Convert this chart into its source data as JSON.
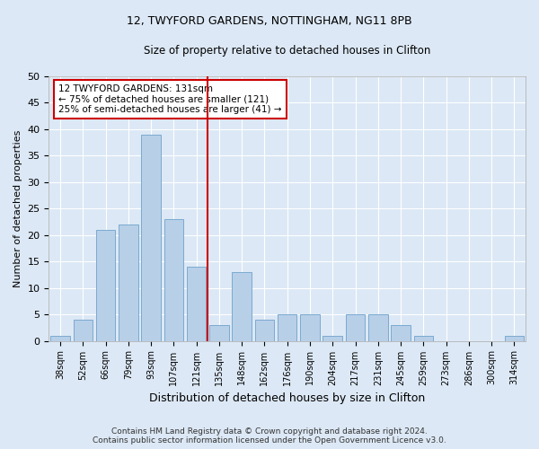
{
  "title_line1": "12, TWYFORD GARDENS, NOTTINGHAM, NG11 8PB",
  "title_line2": "Size of property relative to detached houses in Clifton",
  "xlabel": "Distribution of detached houses by size in Clifton",
  "ylabel": "Number of detached properties",
  "categories": [
    "38sqm",
    "52sqm",
    "66sqm",
    "79sqm",
    "93sqm",
    "107sqm",
    "121sqm",
    "135sqm",
    "148sqm",
    "162sqm",
    "176sqm",
    "190sqm",
    "204sqm",
    "217sqm",
    "231sqm",
    "245sqm",
    "259sqm",
    "273sqm",
    "286sqm",
    "300sqm",
    "314sqm"
  ],
  "values": [
    1,
    4,
    21,
    22,
    39,
    23,
    14,
    3,
    13,
    4,
    5,
    5,
    1,
    5,
    5,
    3,
    1,
    0,
    0,
    0,
    1
  ],
  "bar_color": "#b8cfe8",
  "bar_edge_color": "#7aaad0",
  "annotation_text_line1": "12 TWYFORD GARDENS: 131sqm",
  "annotation_text_line2": "← 75% of detached houses are smaller (121)",
  "annotation_text_line3": "25% of semi-detached houses are larger (41) →",
  "annotation_box_facecolor": "#ffffff",
  "annotation_box_edgecolor": "#cc0000",
  "vline_color": "#cc0000",
  "background_color": "#dce8f5",
  "grid_color": "#ffffff",
  "ylim": [
    0,
    50
  ],
  "yticks": [
    0,
    5,
    10,
    15,
    20,
    25,
    30,
    35,
    40,
    45,
    50
  ],
  "footer_line1": "Contains HM Land Registry data © Crown copyright and database right 2024.",
  "footer_line2": "Contains public sector information licensed under the Open Government Licence v3.0.",
  "title1_fontsize": 9,
  "title2_fontsize": 9,
  "vline_x_index": 6.5
}
